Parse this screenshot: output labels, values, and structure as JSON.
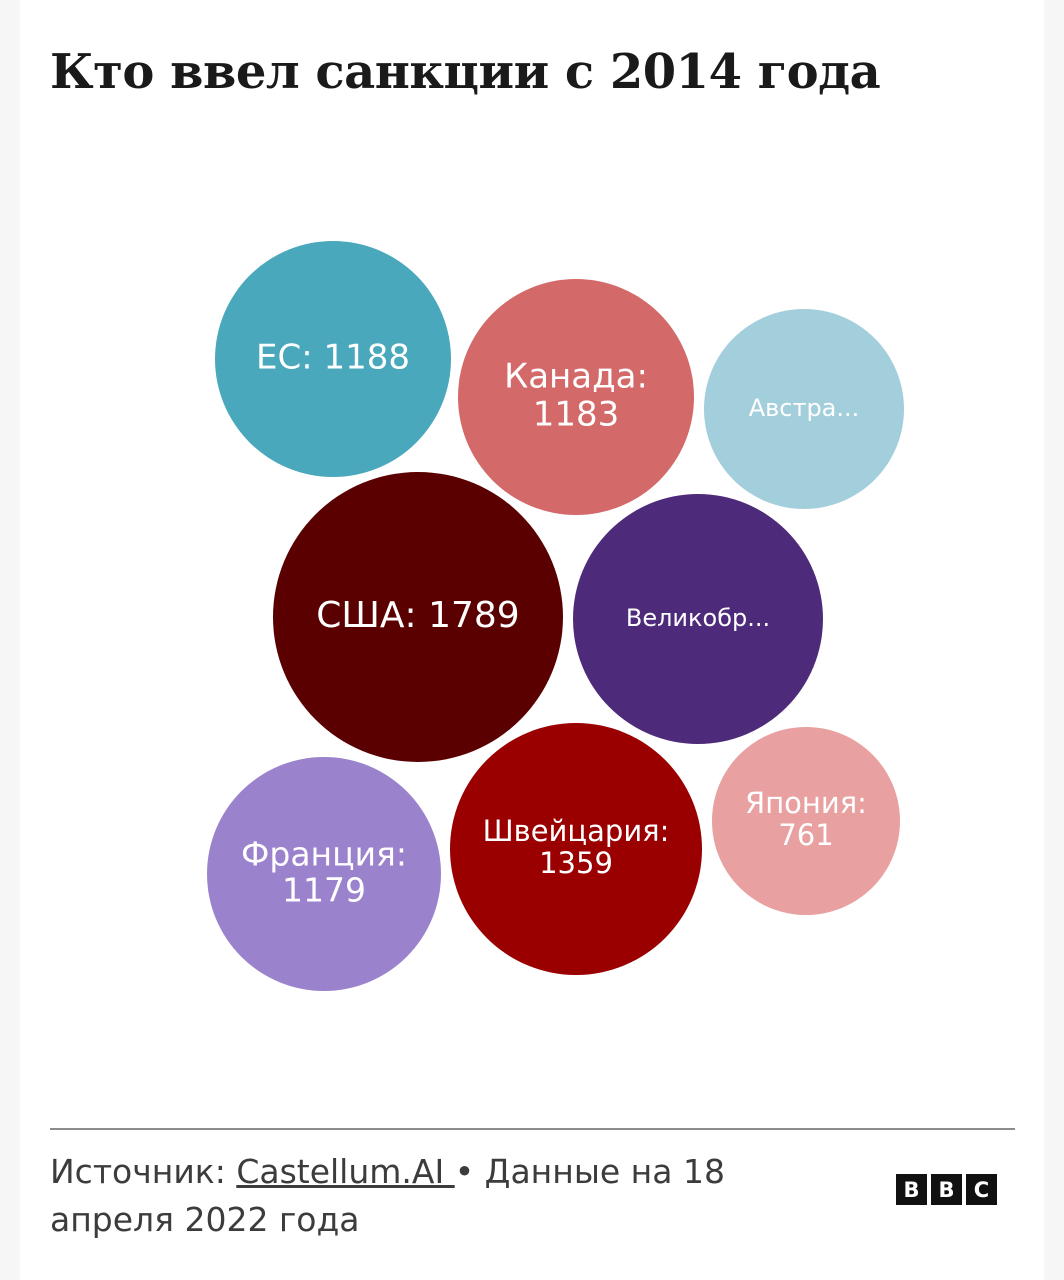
{
  "title": "Кто ввел санкции с 2014 года",
  "chart_data": {
    "type": "bubble",
    "series": [
      {
        "label_lines": [
          "ЕС: 1188"
        ],
        "value": 1188,
        "color": "#4aa8bd"
      },
      {
        "label_lines": [
          "Канада:",
          "1183"
        ],
        "value": 1183,
        "color": "#d4696a"
      },
      {
        "label_lines": [
          "Австра..."
        ],
        "value": null,
        "color": "#a3cedb"
      },
      {
        "label_lines": [
          "США: 1789"
        ],
        "value": 1789,
        "color": "#5a0000"
      },
      {
        "label_lines": [
          "Великобр..."
        ],
        "value": null,
        "color": "#4e2a7a"
      },
      {
        "label_lines": [
          "Франция:",
          "1179"
        ],
        "value": 1179,
        "color": "#9b82cc"
      },
      {
        "label_lines": [
          "Швейцария:",
          "1359"
        ],
        "value": 1359,
        "color": "#9b0000"
      },
      {
        "label_lines": [
          "Япония:",
          "761"
        ],
        "value": 761,
        "color": "#e8a0a0"
      }
    ]
  },
  "footer": {
    "source_prefix": "Источник: ",
    "source_link": "Castellum.AI ",
    "source_suffix": "• Данные на 18 апреля 2022 года"
  },
  "logo": {
    "letters": [
      "B",
      "B",
      "C"
    ]
  }
}
